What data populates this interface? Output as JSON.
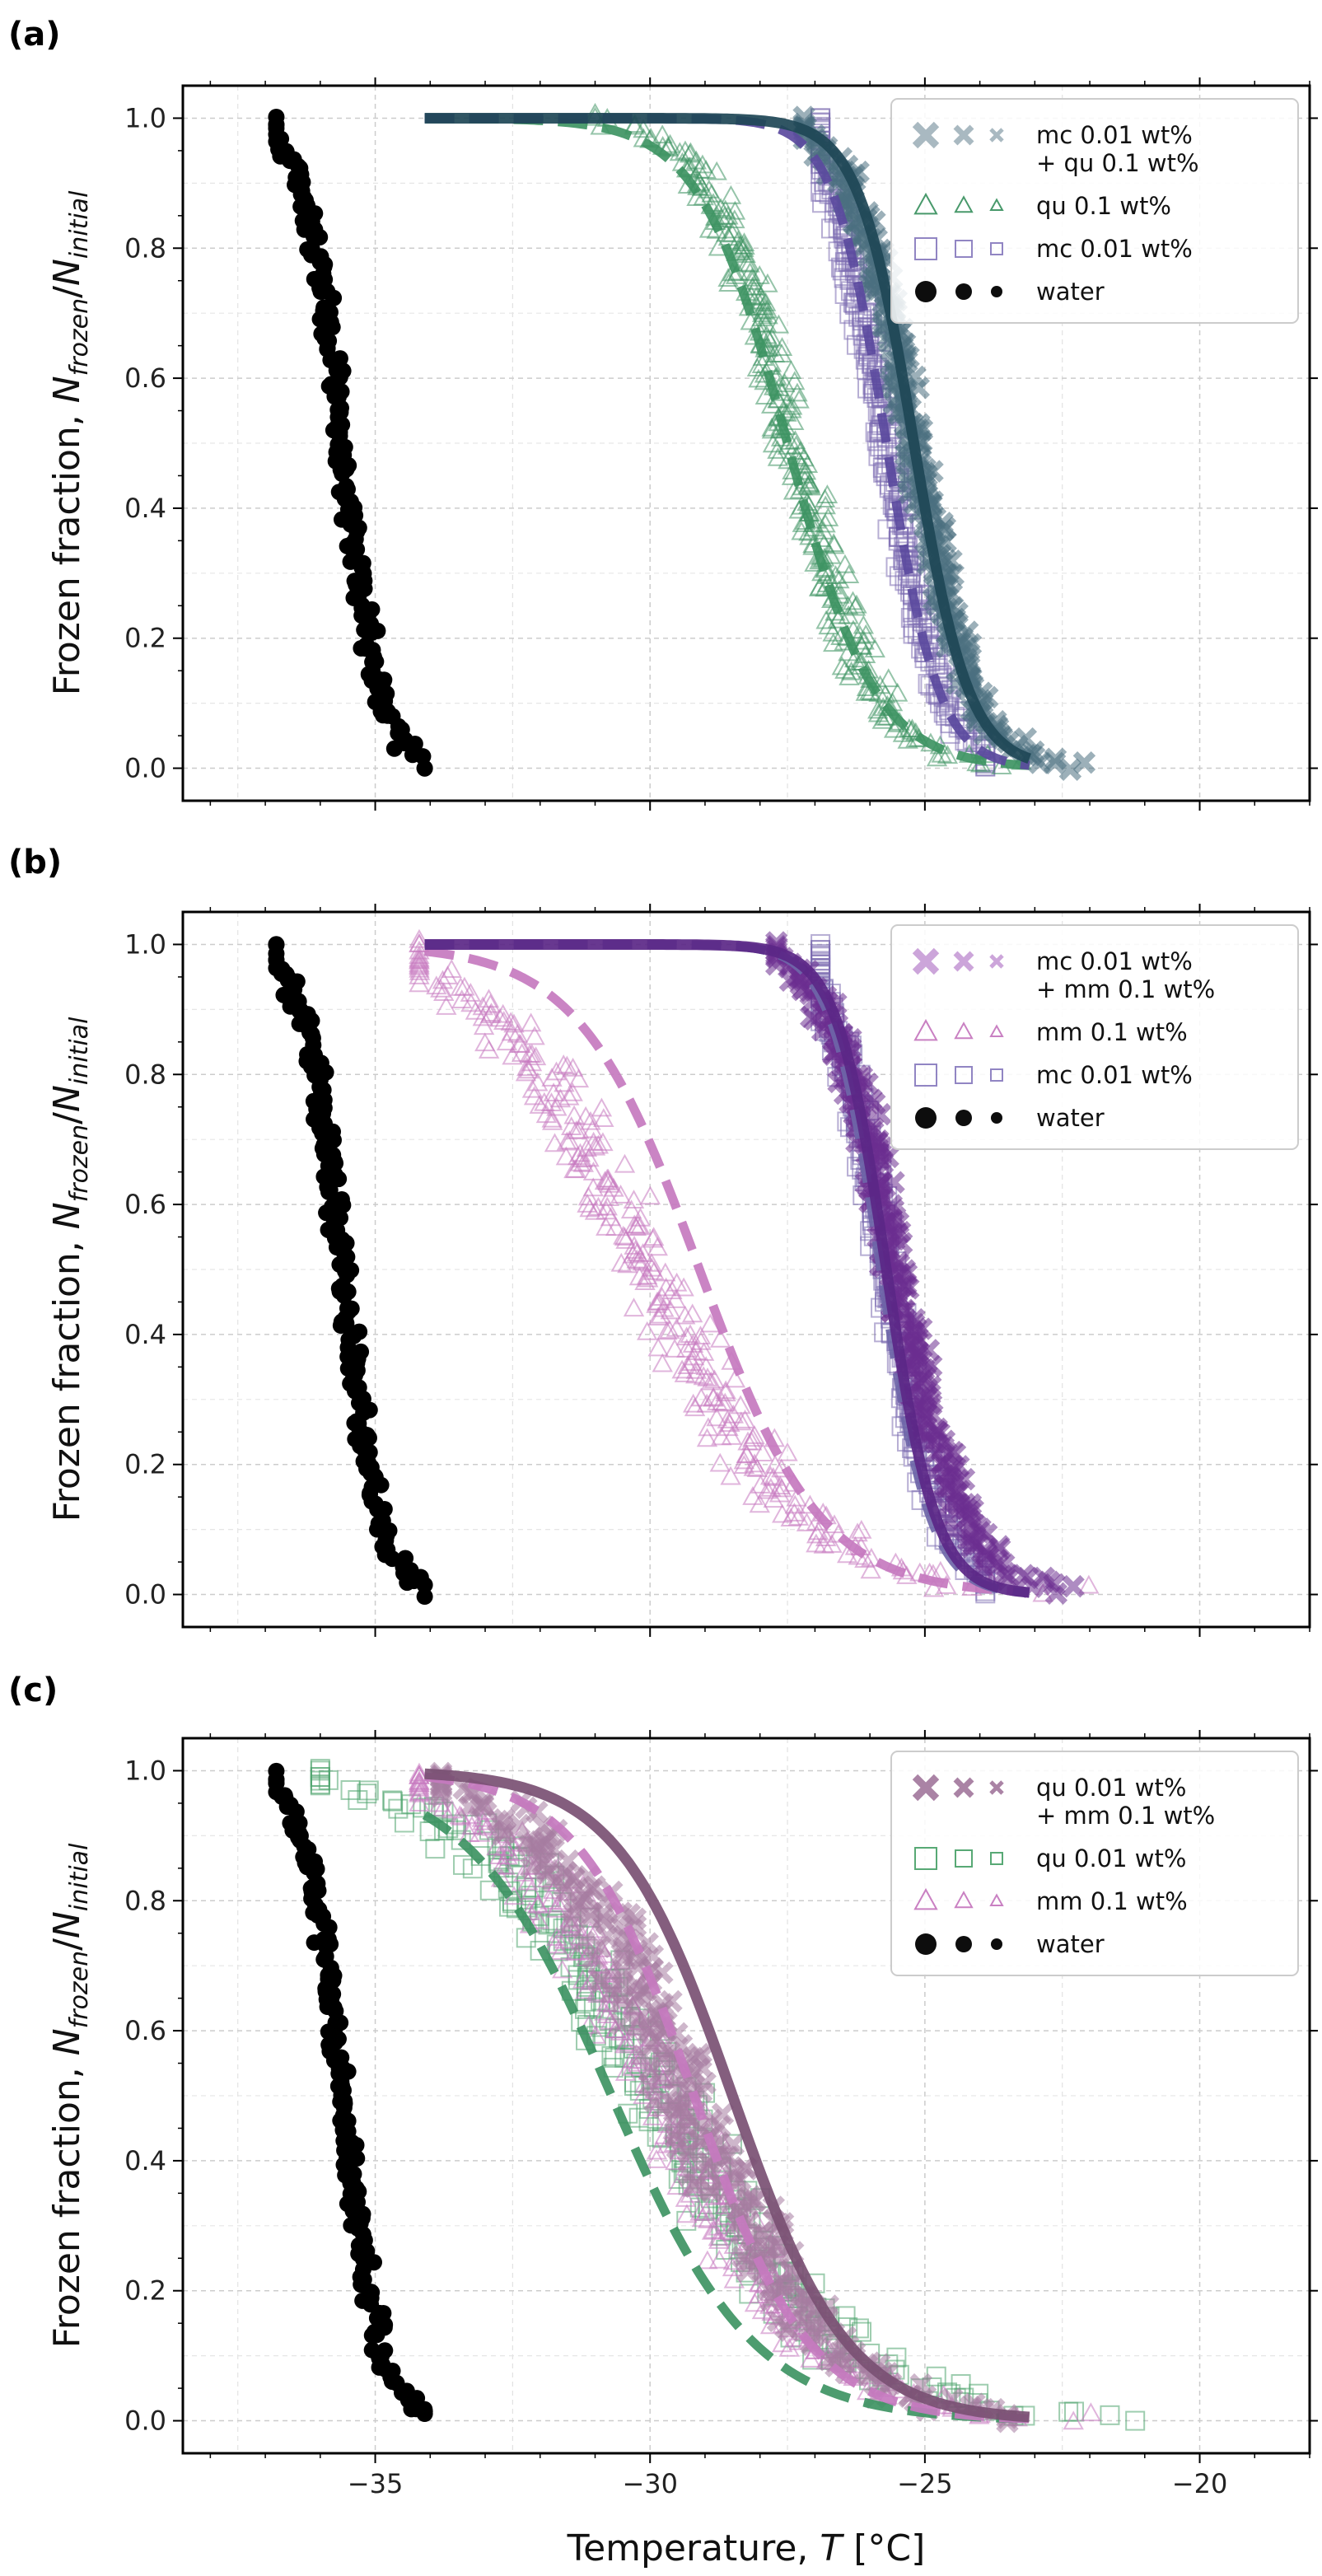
{
  "figure": {
    "x_label": "Temperature, T [°C]",
    "y_label": "Frozen fraction, N_frozen/N_initial",
    "x_ticks": [
      -35,
      -30,
      -25,
      -20
    ],
    "y_ticks": [
      0.0,
      0.2,
      0.4,
      0.6,
      0.8,
      1.0
    ],
    "x_tick_labels": [
      "−35",
      "−30",
      "−25",
      "−20"
    ],
    "y_tick_labels": [
      "0.0",
      "0.2",
      "0.4",
      "0.6",
      "0.8",
      "1.0"
    ],
    "xlim": [
      -38.5,
      -18.0
    ],
    "ylim": [
      -0.05,
      1.05
    ],
    "grid": true,
    "legend_position": "top-right"
  },
  "chart_data": [
    {
      "type": "scatter",
      "panel": "(a)",
      "series": [
        {
          "name": "water",
          "marker": "circle",
          "color": "#000000",
          "T_range": [
            -36.8,
            -34.1
          ],
          "T_mid": -35.6,
          "width": 0.35
        },
        {
          "name": "mc 0.01 wt%",
          "marker": "square",
          "color": "#7B6BB0",
          "T_range": [
            -26.9,
            -23.9
          ],
          "T_mid": -25.7,
          "width": 0.5
        },
        {
          "name": "qu 0.1 wt%",
          "marker": "triangle",
          "color": "#3E9463",
          "T_range": [
            -31.0,
            -21.2
          ],
          "T_mid": -27.4,
          "width": 0.75
        },
        {
          "name": "mc 0.01 wt%\n+ qu 0.1 wt%",
          "marker": "cross",
          "color": "#4A7080",
          "T_range": [
            -27.2,
            -22.1
          ],
          "T_mid": -25.2,
          "width": 0.55
        }
      ],
      "fits": [
        {
          "series": "qu 0.1 wt%",
          "style": "dashed",
          "color": "#3E9463",
          "T_mid": -27.5,
          "width": 0.8,
          "T_range": [
            -34.1,
            -23.1
          ]
        },
        {
          "series": "mc 0.01 wt%",
          "style": "dashed",
          "color": "#5B4A9E",
          "T_mid": -25.7,
          "width": 0.48,
          "T_range": [
            -34.1,
            -23.1
          ]
        },
        {
          "series": "mc 0.01 wt%\n+ qu 0.1 wt%",
          "style": "solid",
          "color": "#1E4656",
          "T_mid": -25.2,
          "width": 0.5,
          "T_range": [
            -34.1,
            -23.1
          ]
        }
      ],
      "legend": [
        {
          "label_lines": [
            "mc 0.01 wt%",
            "+ qu 0.1 wt%"
          ],
          "marker": "cross",
          "color": "#A4B5BE"
        },
        {
          "label_lines": [
            "qu 0.1 wt%"
          ],
          "marker": "triangle",
          "color": "#3E9463"
        },
        {
          "label_lines": [
            "mc 0.01 wt%"
          ],
          "marker": "square",
          "color": "#8B7EC0"
        },
        {
          "label_lines": [
            "water"
          ],
          "marker": "circle",
          "color": "#000000"
        }
      ]
    },
    {
      "type": "scatter",
      "panel": "(b)",
      "series": [
        {
          "name": "water",
          "marker": "circle",
          "color": "#000000",
          "T_range": [
            -36.8,
            -34.1
          ],
          "T_mid": -35.6,
          "width": 0.35
        },
        {
          "name": "mc 0.01 wt%",
          "marker": "square",
          "color": "#7B6BB0",
          "T_range": [
            -26.9,
            -23.9
          ],
          "T_mid": -25.7,
          "width": 0.5
        },
        {
          "name": "mm 0.1 wt%",
          "marker": "triangle",
          "color": "#C679BF",
          "T_range": [
            -34.2,
            -21.2
          ],
          "T_mid": -30.0,
          "width": 1.4
        },
        {
          "name": "mc 0.01 wt%\n+ mm 0.1 wt%",
          "marker": "cross",
          "color": "#6B2E8F",
          "T_range": [
            -27.7,
            -22.3
          ],
          "T_mid": -25.5,
          "width": 0.6
        }
      ],
      "fits": [
        {
          "series": "mm 0.1 wt%",
          "style": "dashed",
          "color": "#C679BF",
          "T_mid": -29.1,
          "width": 1.1,
          "T_range": [
            -34.1,
            -23.1
          ]
        },
        {
          "series": "mc 0.01 wt%",
          "style": "dashed",
          "color": "#6E66A8",
          "T_mid": -25.8,
          "width": 0.45,
          "T_range": [
            -34.1,
            -23.1
          ]
        },
        {
          "series": "mc 0.01 wt%\n+ mm 0.1 wt%",
          "style": "solid",
          "color": "#5B2787",
          "T_mid": -25.7,
          "width": 0.45,
          "T_range": [
            -34.1,
            -23.1
          ]
        }
      ],
      "legend": [
        {
          "label_lines": [
            "mc 0.01 wt%",
            "+ mm 0.1 wt%"
          ],
          "marker": "cross",
          "color": "#C9A0D8"
        },
        {
          "label_lines": [
            "mm 0.1 wt%"
          ],
          "marker": "triangle",
          "color": "#C679BF"
        },
        {
          "label_lines": [
            "mc 0.01 wt%"
          ],
          "marker": "square",
          "color": "#8B7EC0"
        },
        {
          "label_lines": [
            "water"
          ],
          "marker": "circle",
          "color": "#000000"
        }
      ]
    },
    {
      "type": "scatter",
      "panel": "(c)",
      "series": [
        {
          "name": "water",
          "marker": "circle",
          "color": "#000000",
          "T_range": [
            -36.8,
            -34.1
          ],
          "T_mid": -35.6,
          "width": 0.35
        },
        {
          "name": "qu 0.01 wt%",
          "marker": "square",
          "color": "#4FA46E",
          "T_range": [
            -36.0,
            -20.1
          ],
          "T_mid": -29.8,
          "width": 1.6
        },
        {
          "name": "mm 0.1 wt%",
          "marker": "triangle",
          "color": "#C679BF",
          "T_range": [
            -34.2,
            -21.0
          ],
          "T_mid": -29.8,
          "width": 1.4
        },
        {
          "name": "qu 0.01 wt%\n+ mm 0.1 wt%",
          "marker": "cross",
          "color": "#A57CA0",
          "T_range": [
            -33.8,
            -23.5
          ],
          "T_mid": -29.3,
          "width": 1.3
        }
      ],
      "fits": [
        {
          "series": "qu 0.01 wt%",
          "style": "dashed",
          "color": "#3E9463",
          "T_mid": -30.7,
          "width": 1.3,
          "T_range": [
            -34.1,
            -23.1
          ]
        },
        {
          "series": "mm 0.1 wt%",
          "style": "dashed",
          "color": "#C679BF",
          "T_mid": -29.2,
          "width": 1.05,
          "T_range": [
            -34.1,
            -23.1
          ]
        },
        {
          "series": "qu 0.01 wt%\n+ mm 0.1 wt%",
          "style": "solid",
          "color": "#7A5073",
          "T_mid": -28.5,
          "width": 1.05,
          "T_range": [
            -34.1,
            -23.1
          ]
        }
      ],
      "legend": [
        {
          "label_lines": [
            "qu 0.01 wt%",
            "+ mm 0.1 wt%"
          ],
          "marker": "cross",
          "color": "#A57CA0"
        },
        {
          "label_lines": [
            "qu 0.01 wt%"
          ],
          "marker": "square",
          "color": "#4FA46E"
        },
        {
          "label_lines": [
            "mm 0.1 wt%"
          ],
          "marker": "triangle",
          "color": "#C679BF"
        },
        {
          "label_lines": [
            "water"
          ],
          "marker": "circle",
          "color": "#000000"
        }
      ]
    }
  ]
}
